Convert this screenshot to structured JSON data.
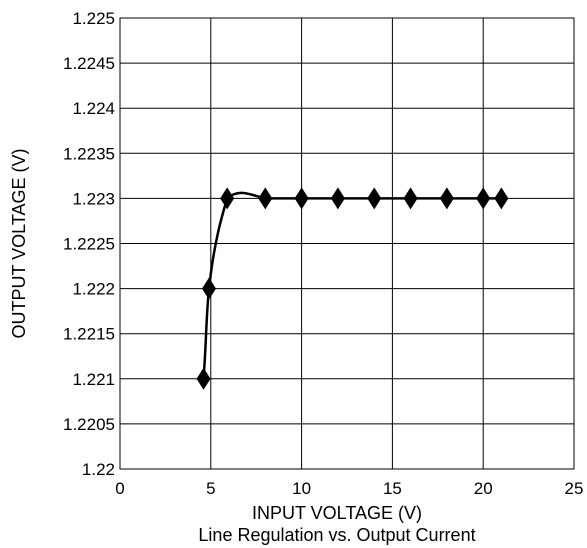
{
  "chart_data": {
    "type": "line",
    "caption": "Line Regulation vs. Output Current",
    "xlabel": "INPUT VOLTAGE (V)",
    "ylabel": "OUTPUT VOLTAGE (V)",
    "xlim": [
      0,
      25
    ],
    "ylim": [
      1.22,
      1.225
    ],
    "x_ticks": [
      "0",
      "5",
      "10",
      "15",
      "20",
      "25"
    ],
    "y_ticks": [
      "1.22",
      "1.2205",
      "1.221",
      "1.2215",
      "1.222",
      "1.2225",
      "1.223",
      "1.2235",
      "1.224",
      "1.2245",
      "1.225"
    ],
    "grid": true,
    "marker": "diamond",
    "series": [
      {
        "x": [
          4.6,
          4.9,
          5.9,
          8,
          10,
          12,
          14,
          16,
          18,
          20,
          21
        ],
        "y": [
          1.221,
          1.222,
          1.223,
          1.223,
          1.223,
          1.223,
          1.223,
          1.223,
          1.223,
          1.223,
          1.223
        ]
      }
    ]
  }
}
